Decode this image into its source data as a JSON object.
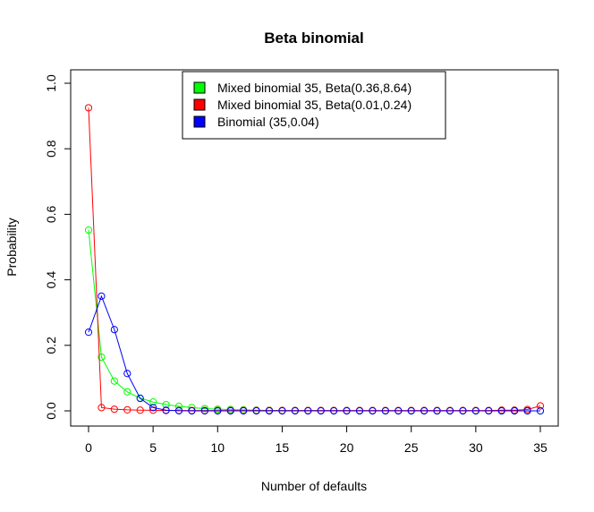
{
  "chart_data": {
    "type": "line",
    "title": "Beta binomial",
    "xlabel": "Number of defaults",
    "ylabel": "Probability",
    "xlim": [
      0,
      35
    ],
    "ylim": [
      0,
      1
    ],
    "x_ticks": [
      "0",
      "5",
      "10",
      "15",
      "20",
      "25",
      "30",
      "35"
    ],
    "y_ticks": [
      "0.0",
      "0.2",
      "0.4",
      "0.6",
      "0.8",
      "1.0"
    ],
    "grid": false,
    "legend_position": "top-center",
    "x": [
      0,
      1,
      2,
      3,
      4,
      5,
      6,
      7,
      8,
      9,
      10,
      11,
      12,
      13,
      14,
      15,
      16,
      17,
      18,
      19,
      20,
      21,
      22,
      23,
      24,
      25,
      26,
      27,
      28,
      29,
      30,
      31,
      32,
      33,
      34,
      35
    ],
    "series": [
      {
        "name": "Mixed binomial 35, Beta(0.36,8.64)",
        "color": "#00ff00",
        "values": [
          0.552,
          0.164,
          0.091,
          0.058,
          0.039,
          0.027,
          0.019,
          0.014,
          0.01,
          0.007,
          0.005,
          0.004,
          0.003,
          0.002,
          0.0015,
          0.001,
          0.0008,
          0.0006,
          0.0004,
          0.0003,
          0.0002,
          0.0002,
          0.0001,
          0.0001,
          0.0001,
          0,
          0,
          0,
          0,
          0,
          0,
          0,
          0,
          0,
          0,
          0
        ]
      },
      {
        "name": "Mixed binomial 35, Beta(0.01,0.24)",
        "color": "#ff0000",
        "values": [
          0.925,
          0.01,
          0.005,
          0.003,
          0.002,
          0.002,
          0.001,
          0.001,
          0.001,
          0.001,
          0.001,
          0.001,
          0.001,
          0.001,
          0.001,
          0.001,
          0.001,
          0.001,
          0.001,
          0.001,
          0.001,
          0.001,
          0.001,
          0.001,
          0.001,
          0.001,
          0.001,
          0.001,
          0.001,
          0.001,
          0.001,
          0.001,
          0.002,
          0.002,
          0.004,
          0.015
        ]
      },
      {
        "name": "Binomial (35,0.04)",
        "color": "#0000ff",
        "values": [
          0.24,
          0.35,
          0.248,
          0.114,
          0.038,
          0.01,
          0.002,
          0.0004,
          0.0001,
          0,
          0,
          0,
          0,
          0,
          0,
          0,
          0,
          0,
          0,
          0,
          0,
          0,
          0,
          0,
          0,
          0,
          0,
          0,
          0,
          0,
          0,
          0,
          0,
          0,
          0,
          0
        ]
      }
    ]
  }
}
